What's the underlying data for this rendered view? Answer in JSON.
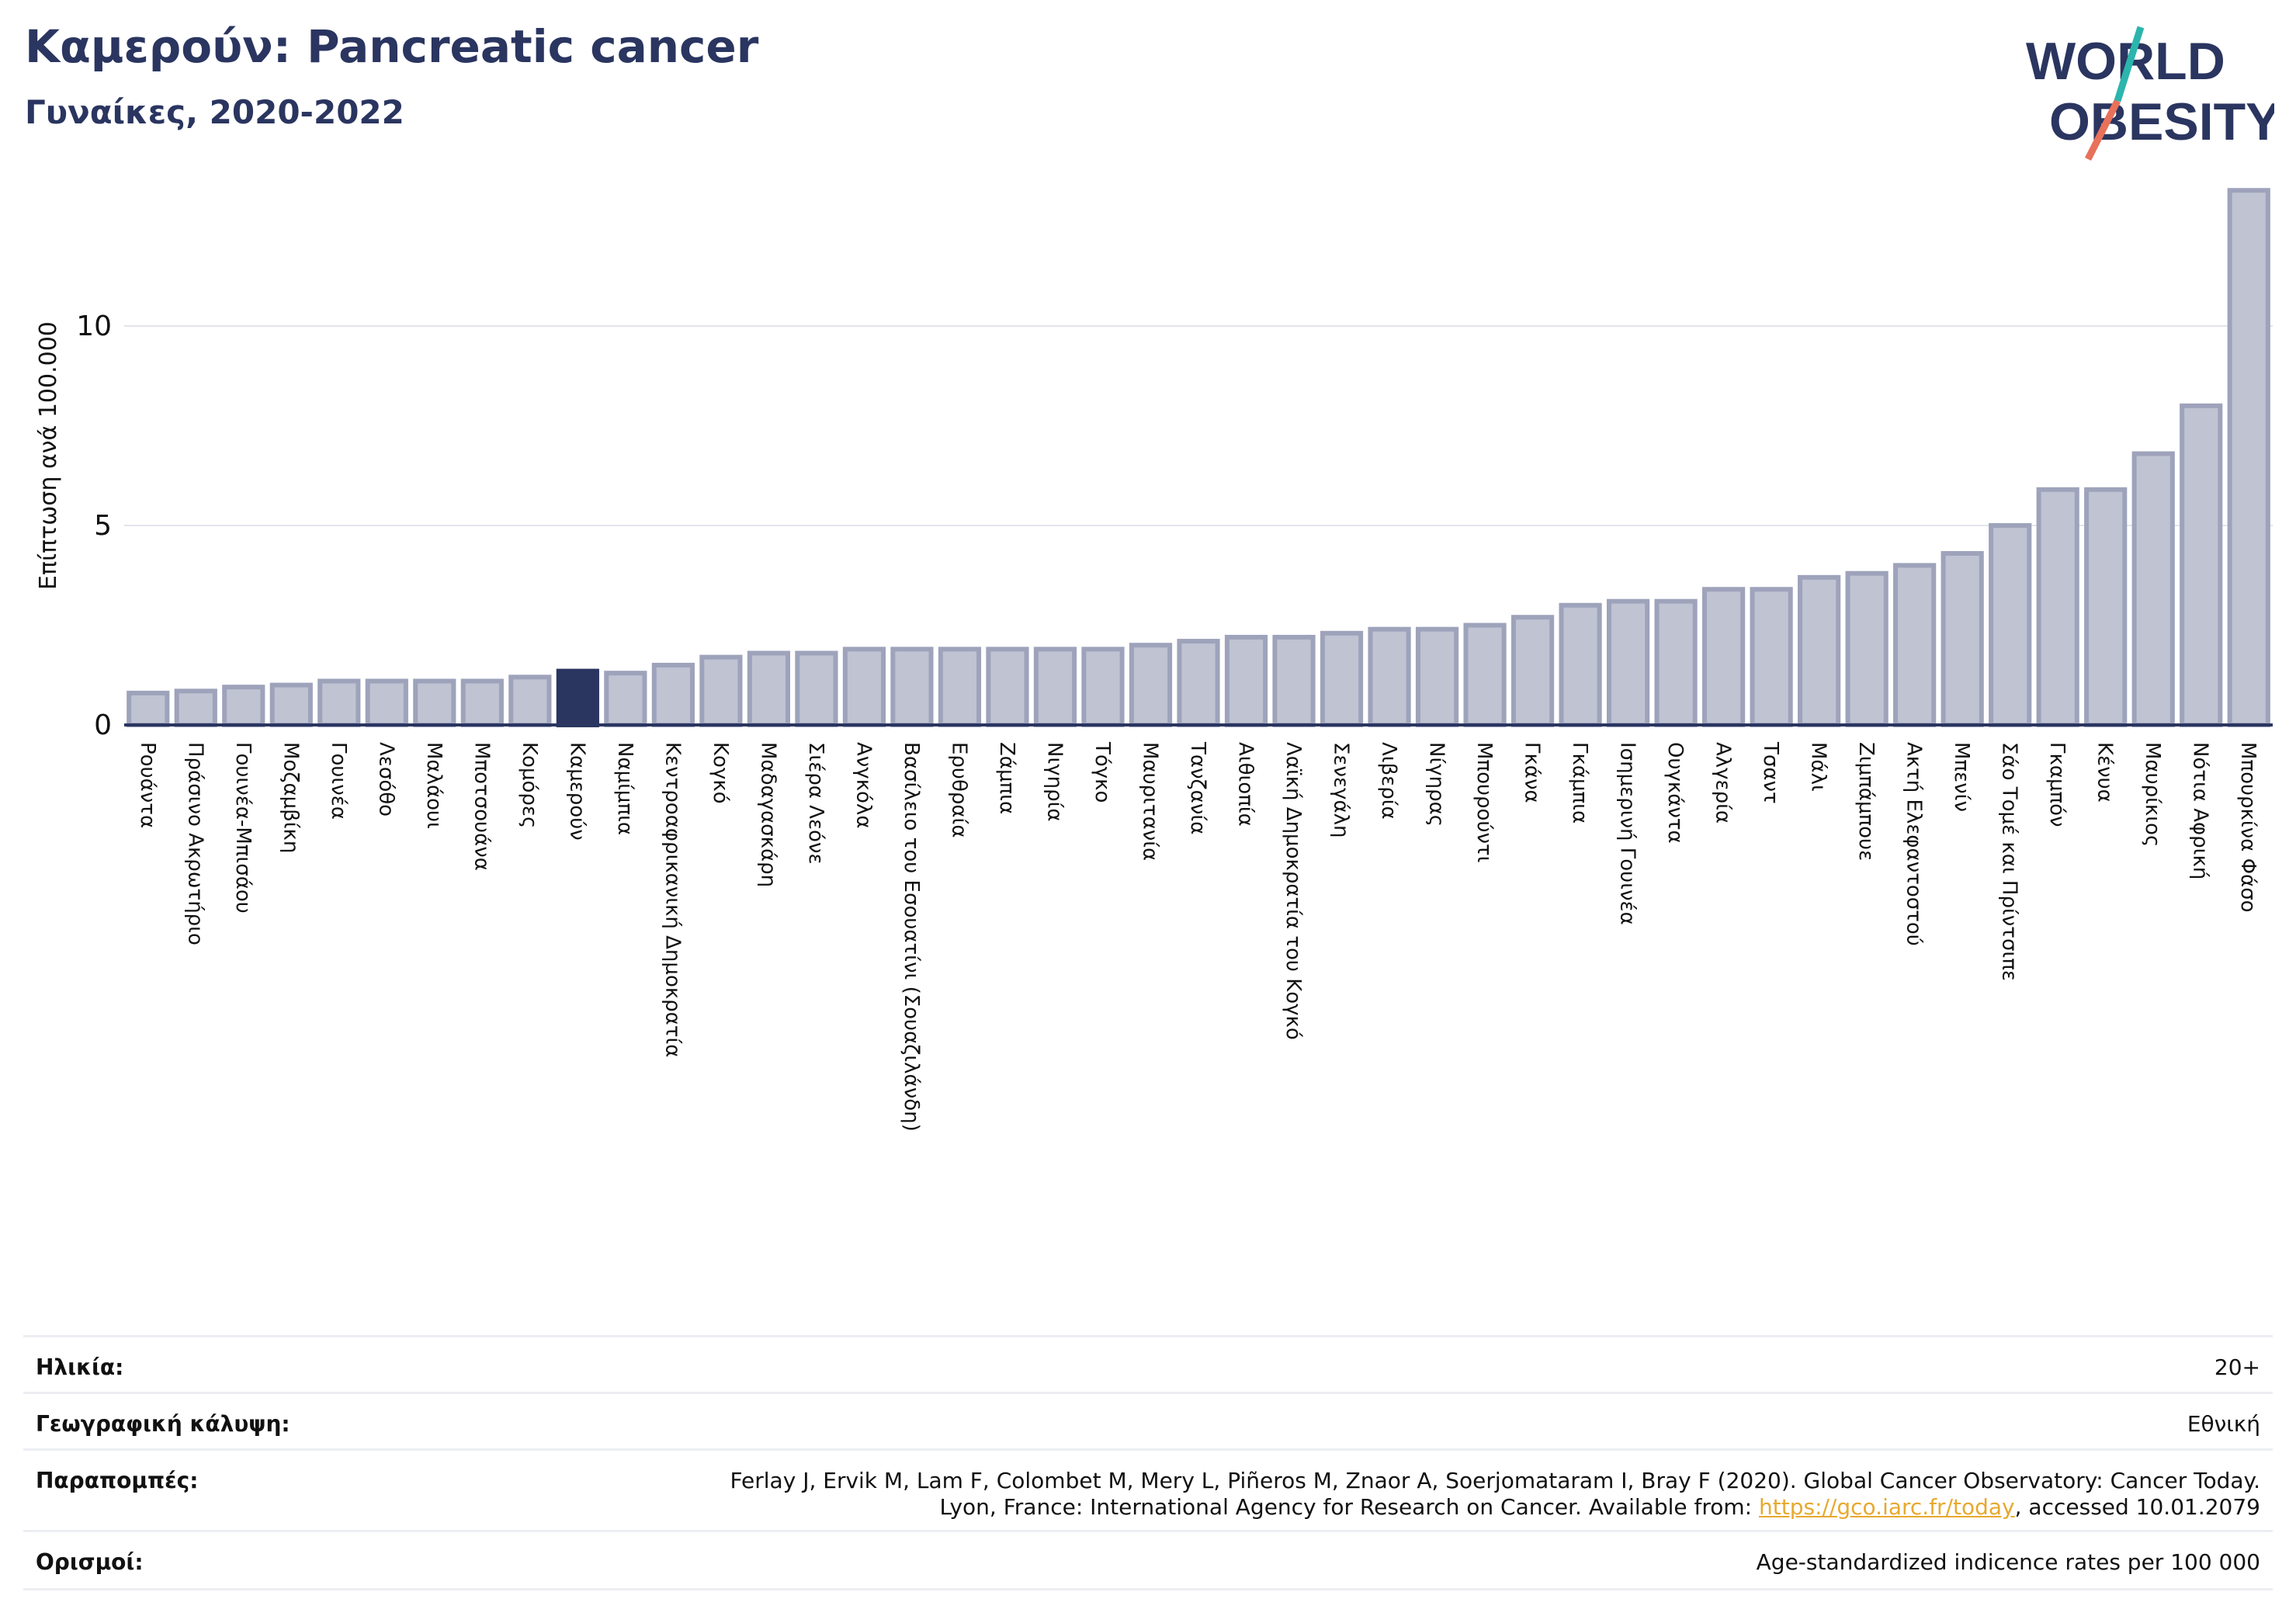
{
  "header": {
    "title": "Καμερούν: Pancreatic cancer",
    "subtitle": "Γυναίκες, 2020-2022"
  },
  "logo": {
    "line1": "WORLD",
    "line2": "OBESITY"
  },
  "colors": {
    "highlight": "#2a3560",
    "bar_fill": "#bfc3d2",
    "bar_stroke": "#9ea3bb",
    "title": "#2a3560",
    "logo_slash_a": "#2bb5ad",
    "logo_slash_b": "#e8715a"
  },
  "chart_data": {
    "type": "bar",
    "ylabel": "Επίπτωση ανά 100.000",
    "ylim": [
      0,
      13.5
    ],
    "yticks": [
      0,
      5,
      10
    ],
    "grid": true,
    "highlight": "Καμερούν",
    "categories": [
      "Ρουάντα",
      "Πράσινο Ακρωτήριο",
      "Γουινέα-Μπισάου",
      "Μοζαμβίκη",
      "Γουινέα",
      "Λεσόθο",
      "Μαλάουι",
      "Μποτσουάνα",
      "Κομόρες",
      "Καμερούν",
      "Ναμίμπια",
      "Κεντροαφρικανική Δημοκρατία",
      "Κογκό",
      "Μαδαγασκάρη",
      "Σιέρα Λεόνε",
      "Ανγκόλα",
      "Βασίλειο του Εσουατίνι (Σουαζιλάνδη)",
      "Ερυθραία",
      "Ζάμπια",
      "Νιγηρία",
      "Τόγκο",
      "Μαυριτανία",
      "Τανζανία",
      "Αιθιοπία",
      "Λαϊκή Δημοκρατία του Κογκό",
      "Σενεγάλη",
      "Λιβερία",
      "Νίγηρας",
      "Μπουρούντι",
      "Γκάνα",
      "Γκάμπια",
      "Ισημερινή Γουινέα",
      "Ουγκάντα",
      "Αλγερία",
      "Τσαντ",
      "Μάλι",
      "Ζιμπάμπουε",
      "Ακτή Ελεφαντοστού",
      "Μπενίν",
      "Σάο Τομέ και Πρίντσιπε",
      "Γκαμπόν",
      "Κένυα",
      "Μαυρίκιος",
      "Νότια Αφρική",
      "Μπουρκίνα Φάσο"
    ],
    "values": [
      0.8,
      0.85,
      0.95,
      1.0,
      1.1,
      1.1,
      1.1,
      1.1,
      1.2,
      1.35,
      1.3,
      1.5,
      1.7,
      1.8,
      1.8,
      1.9,
      1.9,
      1.9,
      1.9,
      1.9,
      1.9,
      2.0,
      2.1,
      2.2,
      2.2,
      2.3,
      2.4,
      2.4,
      2.5,
      2.7,
      3.0,
      3.1,
      3.1,
      3.4,
      3.4,
      3.7,
      3.8,
      4.0,
      4.3,
      5.0,
      5.9,
      5.9,
      6.8,
      8.0,
      13.4
    ]
  },
  "info": {
    "age_label": "Ηλικία:",
    "age_value": "20+",
    "coverage_label": "Γεωγραφική κάλυψη:",
    "coverage_value": "Εθνική",
    "refs_label": "Παραπομπές:",
    "refs_line1": "Ferlay J, Ervik M, Lam F, Colombet M, Mery L, Piñeros M, Znaor A, Soerjomataram I, Bray F (2020). Global Cancer Observatory: Cancer Today.",
    "refs_line2_pre": "Lyon, France: International Agency for Research on Cancer. Available from: ",
    "refs_link": "https://gco.iarc.fr/today",
    "refs_line2_post": ", accessed 10.01.2079",
    "defs_label": "Ορισμοί:",
    "defs_value": "Age-standardized indicence rates per 100 000"
  }
}
